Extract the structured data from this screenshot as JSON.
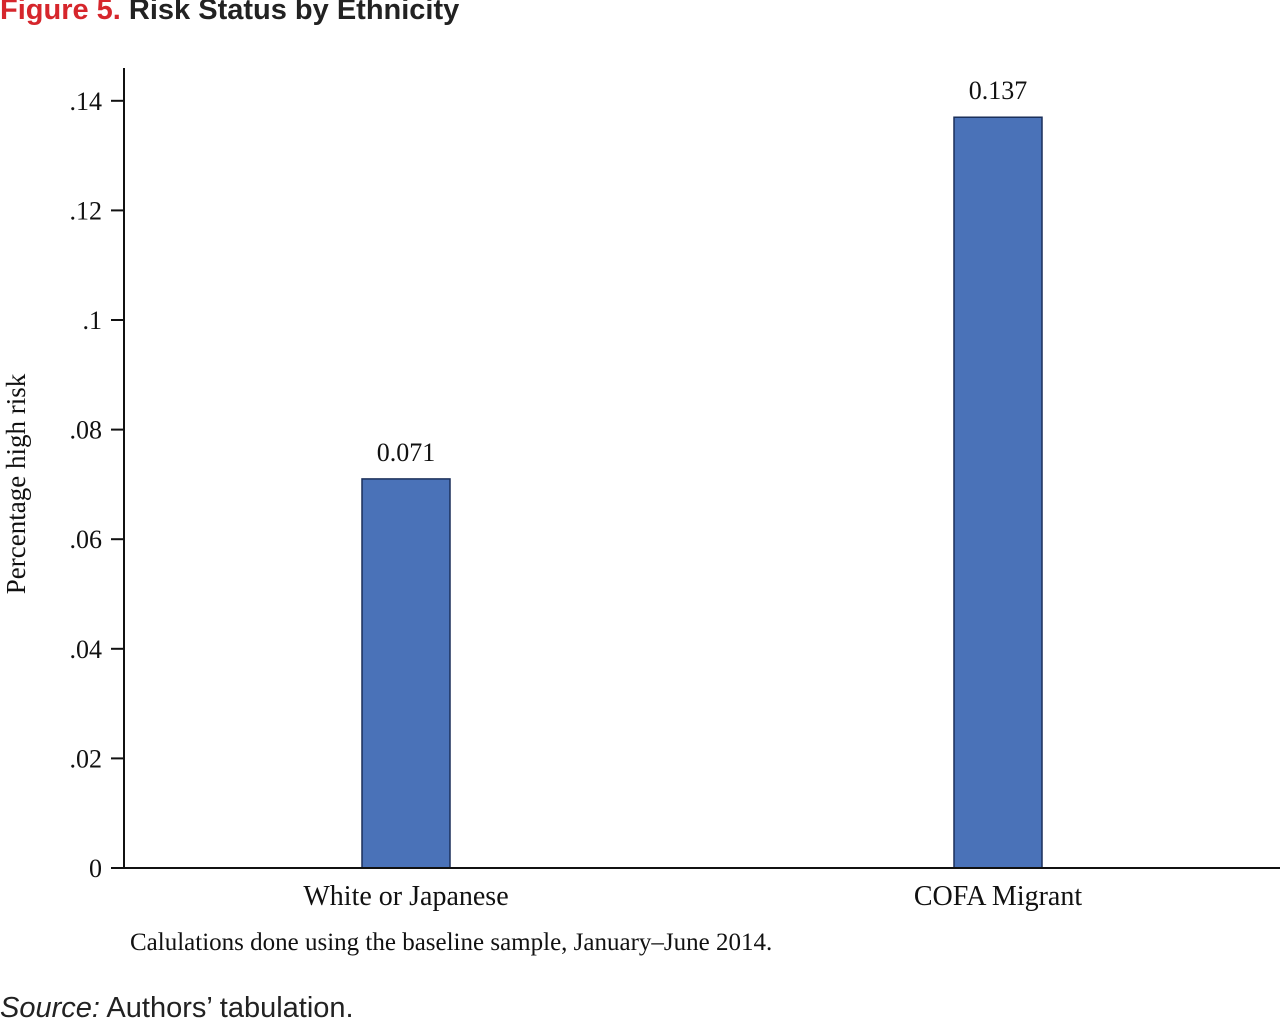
{
  "figure": {
    "label": "Figure 5.",
    "title": "Risk Status by Ethnicity"
  },
  "chart_data": {
    "type": "bar",
    "categories": [
      "White or Japanese",
      "COFA Migrant"
    ],
    "values": [
      0.071,
      0.137
    ],
    "value_labels": [
      "0.071",
      "0.137"
    ],
    "ylabel": "Percentage high risk",
    "xlabel": "",
    "ylim": [
      0,
      0.14
    ],
    "yticks": [
      0,
      0.02,
      0.04,
      0.06,
      0.08,
      0.1,
      0.12,
      0.14
    ],
    "ytick_labels": [
      "0",
      ".02",
      ".04",
      ".06",
      ".08",
      ".1",
      ".12",
      ".14"
    ],
    "grid": false,
    "bar_color": "#4a72b8",
    "note": "Calulations done using the baseline sample, January–June 2014."
  },
  "source": {
    "label": "Source:",
    "text": "Authors’ tabulation."
  },
  "colors": {
    "figure_label": "#d6262c",
    "bar": "#4a72b8",
    "axis": "#111111"
  }
}
